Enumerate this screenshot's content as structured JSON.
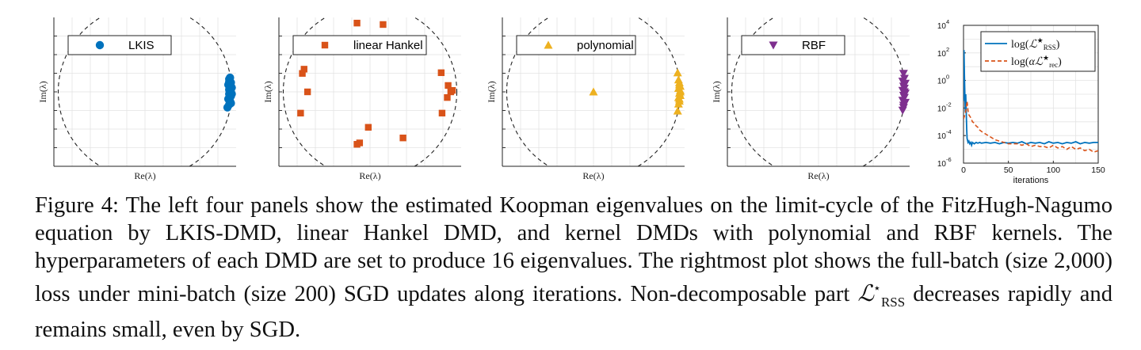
{
  "caption": {
    "label": "Figure 4:",
    "text": "The left four panels show the estimated Koopman eigenvalues on the limit-cycle of the FitzHugh-Nagumo equation by LKIS-DMD, linear Hankel DMD, and kernel DMDs with polynomial and RBF kernels. The hyperparameters of each DMD are set to produce 16 eigenvalues. The rightmost plot shows the full-batch (size 2,000) loss under mini-batch (size 200) SGD updates along iterations. Non-decomposable part",
    "math_base": "ℒ",
    "math_sup": "⋆",
    "math_sub": "RSS",
    "text_end": " decreases rapidly and remains small, even by SGD."
  },
  "chart_data": [
    {
      "type": "scatter",
      "xlabel": "Re(λ)",
      "ylabel": "Im(λ)",
      "xlim": [
        -1.05,
        1.05
      ],
      "ylim": [
        -1.05,
        1.05
      ],
      "grid": true,
      "legend_position": "top-left",
      "unit_circle": true,
      "series": [
        {
          "name": "LKIS",
          "color": "#0072BD",
          "marker": "circle",
          "points": [
            [
              0.98,
              0.2
            ],
            [
              0.97,
              0.18
            ],
            [
              0.99,
              0.13
            ],
            [
              0.96,
              0.1
            ],
            [
              1.0,
              0.06
            ],
            [
              0.97,
              0.03
            ],
            [
              0.99,
              0.0
            ],
            [
              1.0,
              -0.03
            ],
            [
              0.97,
              -0.03
            ],
            [
              0.99,
              -0.06
            ],
            [
              0.96,
              -0.1
            ],
            [
              0.98,
              -0.13
            ],
            [
              0.97,
              -0.18
            ],
            [
              0.95,
              -0.22
            ],
            [
              0.97,
              0.14
            ],
            [
              0.99,
              -0.16
            ]
          ]
        }
      ]
    },
    {
      "type": "scatter",
      "xlabel": "Re(λ)",
      "ylabel": "Im(λ)",
      "xlim": [
        -1.05,
        1.05
      ],
      "ylim": [
        -1.05,
        1.05
      ],
      "grid": true,
      "legend_position": "top-left",
      "unit_circle": true,
      "series": [
        {
          "name": "linear Hankel",
          "color": "#D95319",
          "marker": "square",
          "points": [
            [
              -0.15,
              0.97
            ],
            [
              -0.78,
              0.26
            ],
            [
              -0.72,
              0.0
            ],
            [
              -0.8,
              -0.3
            ],
            [
              0.38,
              -0.65
            ],
            [
              -0.02,
              -0.5
            ],
            [
              -0.12,
              -0.72
            ],
            [
              0.82,
              0.27
            ],
            [
              0.9,
              0.09
            ],
            [
              0.93,
              0.0
            ],
            [
              0.89,
              -0.08
            ],
            [
              0.83,
              -0.3
            ],
            [
              0.95,
              0.02
            ],
            [
              -0.76,
              0.32
            ],
            [
              0.15,
              0.95
            ],
            [
              -0.15,
              -0.74
            ]
          ]
        }
      ]
    },
    {
      "type": "scatter",
      "xlabel": "Re(λ)",
      "ylabel": "Im(λ)",
      "xlim": [
        -1.05,
        1.05
      ],
      "ylim": [
        -1.05,
        1.05
      ],
      "grid": true,
      "legend_position": "top-left",
      "unit_circle": true,
      "series": [
        {
          "name": "polynomial",
          "color": "#EDB120",
          "marker": "triangle-up",
          "points": [
            [
              0.0,
              0.0
            ],
            [
              0.97,
              0.27
            ],
            [
              0.99,
              0.13
            ],
            [
              1.0,
              0.08
            ],
            [
              0.98,
              0.05
            ],
            [
              1.0,
              0.02
            ],
            [
              0.99,
              -0.02
            ],
            [
              1.0,
              -0.05
            ],
            [
              0.98,
              -0.08
            ],
            [
              0.99,
              -0.13
            ],
            [
              0.97,
              -0.27
            ],
            [
              0.99,
              0.1
            ],
            [
              0.99,
              -0.1
            ],
            [
              1.0,
              0.0
            ],
            [
              0.98,
              0.17
            ],
            [
              0.98,
              -0.17
            ]
          ]
        }
      ]
    },
    {
      "type": "scatter",
      "xlabel": "Re(λ)",
      "ylabel": "Im(λ)",
      "xlim": [
        -1.05,
        1.05
      ],
      "ylim": [
        -1.05,
        1.05
      ],
      "grid": true,
      "legend_position": "top-left",
      "unit_circle": true,
      "series": [
        {
          "name": "RBF",
          "color": "#7E2F8E",
          "marker": "triangle-down",
          "points": [
            [
              0.98,
              0.26
            ],
            [
              0.99,
              0.19
            ],
            [
              0.97,
              0.15
            ],
            [
              1.0,
              0.12
            ],
            [
              0.98,
              0.08
            ],
            [
              0.99,
              0.05
            ],
            [
              0.97,
              0.02
            ],
            [
              1.0,
              -0.02
            ],
            [
              0.98,
              -0.05
            ],
            [
              0.99,
              -0.08
            ],
            [
              0.97,
              -0.12
            ],
            [
              1.0,
              -0.15
            ],
            [
              0.98,
              -0.19
            ],
            [
              0.97,
              -0.26
            ],
            [
              0.99,
              0.0
            ],
            [
              0.98,
              -0.22
            ]
          ]
        }
      ]
    },
    {
      "type": "line",
      "xlabel": "iterations",
      "ylabel": "",
      "xlim": [
        0,
        150
      ],
      "ylim_log10": [
        -6,
        4
      ],
      "x_ticks": [
        "0",
        "50",
        "100",
        "150"
      ],
      "y_tick_exponents": [
        "4",
        "2",
        "0",
        "-2",
        "-4",
        "-6"
      ],
      "y_scale": "log",
      "grid": true,
      "legend_position": "top-right",
      "series": [
        {
          "name": "log(ℒ★RSS)",
          "color": "#0072BD",
          "style": "solid",
          "x": [
            0,
            0.5,
            1,
            1.5,
            2,
            2.5,
            3,
            3.5,
            4,
            5,
            6,
            7,
            8,
            9,
            10,
            12,
            14,
            16,
            18,
            20,
            25,
            30,
            35,
            40,
            45,
            50,
            55,
            60,
            65,
            70,
            75,
            80,
            85,
            90,
            95,
            100,
            105,
            110,
            115,
            120,
            125,
            130,
            135,
            140,
            145,
            150
          ],
          "y_log10": [
            -1.5,
            2.2,
            0.5,
            -1.0,
            -2.3,
            -1.0,
            -2.2,
            -3.5,
            -4.2,
            -4.5,
            -4.4,
            -4.6,
            -4.5,
            -4.7,
            -4.5,
            -4.6,
            -4.5,
            -4.55,
            -4.5,
            -4.55,
            -4.5,
            -4.55,
            -4.5,
            -4.6,
            -4.5,
            -4.55,
            -4.5,
            -4.55,
            -4.45,
            -4.6,
            -4.5,
            -4.55,
            -4.5,
            -4.6,
            -4.45,
            -4.55,
            -4.5,
            -4.6,
            -4.5,
            -4.55,
            -4.45,
            -4.6,
            -4.5,
            -4.55,
            -4.5,
            -4.5
          ]
        },
        {
          "name": "log(αℒ★rec)",
          "color": "#D95319",
          "style": "dashed",
          "x": [
            0,
            1,
            2,
            3,
            4,
            5,
            6,
            8,
            10,
            12,
            14,
            16,
            18,
            20,
            25,
            30,
            35,
            40,
            45,
            50,
            55,
            60,
            65,
            70,
            75,
            80,
            85,
            90,
            95,
            100,
            105,
            110,
            115,
            120,
            125,
            130,
            135,
            140,
            145,
            150
          ],
          "y_log10": [
            -2.8,
            -2.6,
            -2.4,
            -2.0,
            -1.5,
            -2.2,
            -2.5,
            -2.7,
            -3.0,
            -3.1,
            -3.3,
            -3.4,
            -3.6,
            -3.7,
            -3.9,
            -4.1,
            -4.3,
            -4.4,
            -4.5,
            -4.6,
            -4.6,
            -4.6,
            -4.7,
            -4.6,
            -4.8,
            -4.7,
            -4.8,
            -4.8,
            -4.9,
            -4.7,
            -4.9,
            -4.8,
            -5.0,
            -4.8,
            -5.0,
            -4.9,
            -5.1,
            -5.0,
            -5.2,
            -5.1
          ]
        }
      ]
    }
  ]
}
